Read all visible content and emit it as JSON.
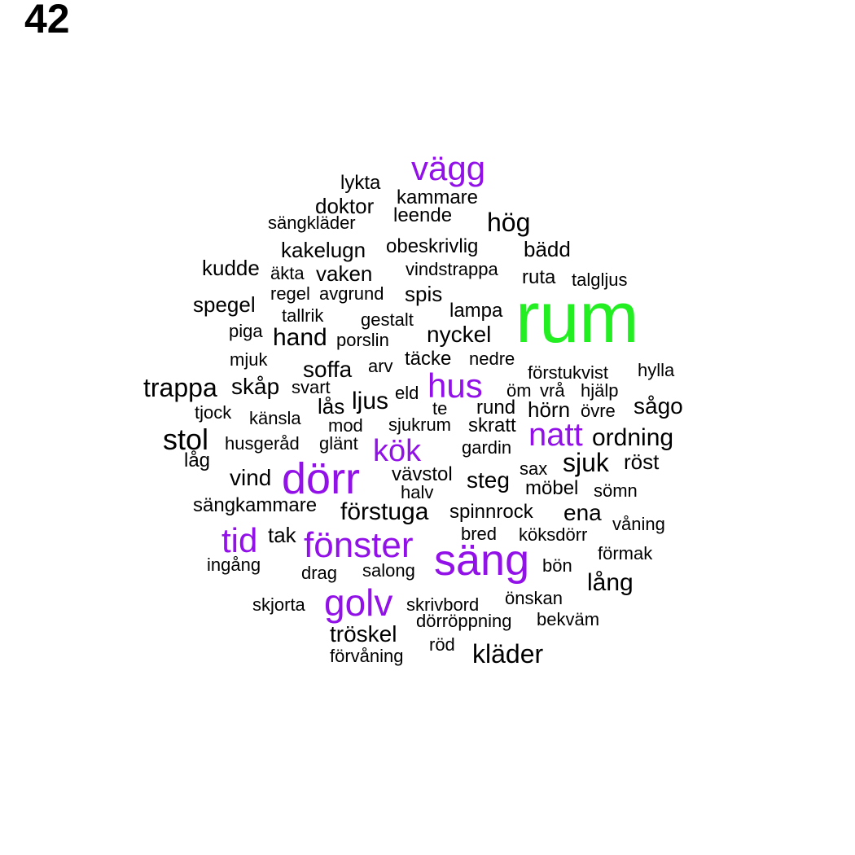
{
  "panel_number": "42",
  "colors": {
    "top": "#22ee22",
    "high": "#9111e8",
    "normal": "#000000"
  },
  "words": [
    {
      "text": "rum",
      "tier": "top"
    },
    {
      "text": "vägg",
      "tier": "high"
    },
    {
      "text": "hus",
      "tier": "high"
    },
    {
      "text": "natt",
      "tier": "high"
    },
    {
      "text": "kök",
      "tier": "high"
    },
    {
      "text": "dörr",
      "tier": "high"
    },
    {
      "text": "tid",
      "tier": "high"
    },
    {
      "text": "fönster",
      "tier": "high"
    },
    {
      "text": "säng",
      "tier": "high"
    },
    {
      "text": "golv",
      "tier": "high"
    },
    {
      "text": "lykta",
      "tier": "normal"
    },
    {
      "text": "kammare",
      "tier": "normal"
    },
    {
      "text": "doktor",
      "tier": "normal"
    },
    {
      "text": "leende",
      "tier": "normal"
    },
    {
      "text": "hög",
      "tier": "normal"
    },
    {
      "text": "sängkläder",
      "tier": "normal"
    },
    {
      "text": "kakelugn",
      "tier": "normal"
    },
    {
      "text": "obeskrivlig",
      "tier": "normal"
    },
    {
      "text": "bädd",
      "tier": "normal"
    },
    {
      "text": "kudde",
      "tier": "normal"
    },
    {
      "text": "äkta",
      "tier": "normal"
    },
    {
      "text": "vaken",
      "tier": "normal"
    },
    {
      "text": "vindstrappa",
      "tier": "normal"
    },
    {
      "text": "ruta",
      "tier": "normal"
    },
    {
      "text": "talgljus",
      "tier": "normal"
    },
    {
      "text": "regel",
      "tier": "normal"
    },
    {
      "text": "avgrund",
      "tier": "normal"
    },
    {
      "text": "spis",
      "tier": "normal"
    },
    {
      "text": "spegel",
      "tier": "normal"
    },
    {
      "text": "tallrik",
      "tier": "normal"
    },
    {
      "text": "gestalt",
      "tier": "normal"
    },
    {
      "text": "lampa",
      "tier": "normal"
    },
    {
      "text": "piga",
      "tier": "normal"
    },
    {
      "text": "hand",
      "tier": "normal"
    },
    {
      "text": "porslin",
      "tier": "normal"
    },
    {
      "text": "nyckel",
      "tier": "normal"
    },
    {
      "text": "mjuk",
      "tier": "normal"
    },
    {
      "text": "soffa",
      "tier": "normal"
    },
    {
      "text": "arv",
      "tier": "normal"
    },
    {
      "text": "täcke",
      "tier": "normal"
    },
    {
      "text": "nedre",
      "tier": "normal"
    },
    {
      "text": "förstukvist",
      "tier": "normal"
    },
    {
      "text": "hylla",
      "tier": "normal"
    },
    {
      "text": "trappa",
      "tier": "normal"
    },
    {
      "text": "skåp",
      "tier": "normal"
    },
    {
      "text": "svart",
      "tier": "normal"
    },
    {
      "text": "ljus",
      "tier": "normal"
    },
    {
      "text": "eld",
      "tier": "normal"
    },
    {
      "text": "öm",
      "tier": "normal"
    },
    {
      "text": "vrå",
      "tier": "normal"
    },
    {
      "text": "hjälp",
      "tier": "normal"
    },
    {
      "text": "tjock",
      "tier": "normal"
    },
    {
      "text": "lås",
      "tier": "normal"
    },
    {
      "text": "te",
      "tier": "normal"
    },
    {
      "text": "rund",
      "tier": "normal"
    },
    {
      "text": "hörn",
      "tier": "normal"
    },
    {
      "text": "övre",
      "tier": "normal"
    },
    {
      "text": "sågo",
      "tier": "normal"
    },
    {
      "text": "känsla",
      "tier": "normal"
    },
    {
      "text": "mod",
      "tier": "normal"
    },
    {
      "text": "sjukrum",
      "tier": "normal"
    },
    {
      "text": "skratt",
      "tier": "normal"
    },
    {
      "text": "stol",
      "tier": "normal"
    },
    {
      "text": "husgeråd",
      "tier": "normal"
    },
    {
      "text": "glänt",
      "tier": "normal"
    },
    {
      "text": "gardin",
      "tier": "normal"
    },
    {
      "text": "ordning",
      "tier": "normal"
    },
    {
      "text": "låg",
      "tier": "normal"
    },
    {
      "text": "sjuk",
      "tier": "normal"
    },
    {
      "text": "röst",
      "tier": "normal"
    },
    {
      "text": "vind",
      "tier": "normal"
    },
    {
      "text": "vävstol",
      "tier": "normal"
    },
    {
      "text": "sax",
      "tier": "normal"
    },
    {
      "text": "steg",
      "tier": "normal"
    },
    {
      "text": "halv",
      "tier": "normal"
    },
    {
      "text": "möbel",
      "tier": "normal"
    },
    {
      "text": "sömn",
      "tier": "normal"
    },
    {
      "text": "sängkammare",
      "tier": "normal"
    },
    {
      "text": "förstuga",
      "tier": "normal"
    },
    {
      "text": "spinnrock",
      "tier": "normal"
    },
    {
      "text": "ena",
      "tier": "normal"
    },
    {
      "text": "våning",
      "tier": "normal"
    },
    {
      "text": "tak",
      "tier": "normal"
    },
    {
      "text": "bred",
      "tier": "normal"
    },
    {
      "text": "köksdörr",
      "tier": "normal"
    },
    {
      "text": "förmak",
      "tier": "normal"
    },
    {
      "text": "ingång",
      "tier": "normal"
    },
    {
      "text": "salong",
      "tier": "normal"
    },
    {
      "text": "bön",
      "tier": "normal"
    },
    {
      "text": "drag",
      "tier": "normal"
    },
    {
      "text": "lång",
      "tier": "normal"
    },
    {
      "text": "skjorta",
      "tier": "normal"
    },
    {
      "text": "skrivbord",
      "tier": "normal"
    },
    {
      "text": "önskan",
      "tier": "normal"
    },
    {
      "text": "dörröppning",
      "tier": "normal"
    },
    {
      "text": "bekväm",
      "tier": "normal"
    },
    {
      "text": "tröskel",
      "tier": "normal"
    },
    {
      "text": "röd",
      "tier": "normal"
    },
    {
      "text": "kläder",
      "tier": "normal"
    },
    {
      "text": "förvåning",
      "tier": "normal"
    }
  ]
}
